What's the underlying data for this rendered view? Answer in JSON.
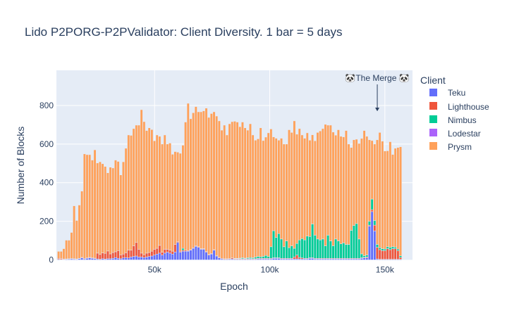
{
  "chart_data": {
    "type": "bar",
    "barmode": "stack",
    "title": "Lido P2PORG-P2PValidator: Client Diversity. 1 bar = 5 days",
    "xlabel": "Epoch",
    "ylabel": "Number of Blocks",
    "xlim": [
      7350,
      162000
    ],
    "ylim": [
      0,
      982
    ],
    "grid": true,
    "x_ticks": [
      {
        "value": 50000,
        "label": "50k"
      },
      {
        "value": 100000,
        "label": "100k"
      },
      {
        "value": 150000,
        "label": "150k"
      }
    ],
    "y_ticks": [
      {
        "value": 0,
        "label": "0"
      },
      {
        "value": 200,
        "label": "200"
      },
      {
        "value": 400,
        "label": "400"
      },
      {
        "value": 600,
        "label": "600"
      },
      {
        "value": 800,
        "label": "800"
      }
    ],
    "legend": {
      "title": "Client",
      "placement": "right"
    },
    "annotation": {
      "text": "🐼The Merge 🐼",
      "x": 146700,
      "y": 770
    },
    "colors": {
      "background": "#E5ECF6",
      "text": "#2a3f5f"
    },
    "x": [
      8300,
      9425,
      10550,
      11675,
      12800,
      13925,
      15050,
      16175,
      17300,
      18425,
      19550,
      20675,
      21800,
      22925,
      24050,
      25175,
      26300,
      27425,
      28550,
      29675,
      30800,
      31925,
      33050,
      34175,
      35300,
      36425,
      37550,
      38675,
      39800,
      40925,
      42050,
      43175,
      44300,
      45425,
      46550,
      47675,
      48800,
      49925,
      51050,
      52175,
      53300,
      54425,
      55550,
      56675,
      57800,
      58925,
      60050,
      61175,
      62300,
      63425,
      64550,
      65675,
      66800,
      67925,
      69050,
      70175,
      71300,
      72425,
      73550,
      74675,
      75800,
      76925,
      78050,
      79175,
      80300,
      81425,
      82550,
      83675,
      84800,
      85925,
      87050,
      88175,
      89300,
      90425,
      91550,
      92675,
      93800,
      94925,
      96050,
      97175,
      98300,
      99425,
      100550,
      101675,
      102800,
      103925,
      105050,
      106175,
      107300,
      108425,
      109550,
      110675,
      111800,
      112925,
      114050,
      115175,
      116300,
      117425,
      118550,
      119675,
      120800,
      121925,
      123050,
      124175,
      125300,
      126425,
      127550,
      128675,
      129800,
      130925,
      132050,
      133175,
      134300,
      135425,
      136550,
      137675,
      138800,
      139925,
      141050,
      142175,
      143300,
      144425,
      145550,
      146675,
      147800,
      148925,
      150050,
      151175,
      152300,
      153425,
      154550,
      155675,
      156800
    ],
    "series": [
      {
        "name": "Teku",
        "color": "#636efa",
        "values": [
          3,
          2,
          2,
          3,
          4,
          5,
          4,
          3,
          6,
          10,
          5,
          8,
          10,
          8,
          6,
          5,
          3,
          6,
          4,
          6,
          6,
          8,
          12,
          8,
          6,
          10,
          12,
          10,
          15,
          18,
          20,
          15,
          15,
          12,
          15,
          18,
          20,
          25,
          30,
          35,
          25,
          35,
          40,
          35,
          30,
          40,
          90,
          40,
          45,
          45,
          45,
          50,
          60,
          70,
          65,
          55,
          55,
          40,
          25,
          30,
          50,
          20,
          10,
          5,
          3,
          3,
          4,
          5,
          3,
          3,
          3,
          3,
          3,
          3,
          4,
          3,
          3,
          5,
          5,
          5,
          5,
          5,
          5,
          8,
          8,
          8,
          5,
          5,
          5,
          5,
          5,
          5,
          5,
          5,
          5,
          5,
          5,
          8,
          8,
          5,
          5,
          5,
          5,
          5,
          5,
          5,
          5,
          5,
          5,
          5,
          5,
          5,
          5,
          5,
          5,
          5,
          5,
          8,
          10,
          10,
          175,
          250,
          150,
          5,
          3,
          3,
          3,
          3,
          3,
          3,
          3,
          3,
          3
        ]
      },
      {
        "name": "Lighthouse",
        "color": "#EF553B",
        "values": [
          5,
          5,
          3,
          2,
          2,
          2,
          2,
          2,
          2,
          3,
          3,
          3,
          3,
          3,
          3,
          30,
          25,
          30,
          30,
          40,
          25,
          30,
          30,
          40,
          20,
          20,
          25,
          40,
          35,
          55,
          70,
          40,
          20,
          15,
          20,
          20,
          25,
          30,
          30,
          40,
          15,
          20,
          15,
          15,
          15,
          40,
          5,
          5,
          5,
          5,
          3,
          3,
          3,
          3,
          3,
          3,
          3,
          3,
          3,
          3,
          3,
          3,
          3,
          3,
          3,
          3,
          3,
          5,
          3,
          3,
          3,
          3,
          3,
          3,
          3,
          3,
          3,
          3,
          3,
          3,
          3,
          3,
          3,
          3,
          3,
          3,
          3,
          3,
          3,
          3,
          3,
          10,
          20,
          8,
          5,
          3,
          3,
          3,
          3,
          3,
          3,
          3,
          3,
          3,
          3,
          3,
          3,
          3,
          3,
          3,
          3,
          3,
          3,
          3,
          3,
          3,
          3,
          3,
          3,
          5,
          5,
          10,
          30,
          60,
          50,
          45,
          45,
          55,
          50,
          55,
          55,
          45,
          10
        ]
      },
      {
        "name": "Nimbus",
        "color": "#00cc96",
        "values": [
          0,
          0,
          0,
          0,
          0,
          0,
          0,
          0,
          0,
          0,
          0,
          0,
          0,
          0,
          0,
          0,
          0,
          0,
          0,
          0,
          0,
          0,
          0,
          0,
          0,
          0,
          0,
          0,
          0,
          0,
          0,
          0,
          0,
          0,
          0,
          0,
          0,
          0,
          0,
          0,
          0,
          0,
          0,
          0,
          0,
          0,
          0,
          0,
          10,
          0,
          0,
          0,
          0,
          0,
          0,
          0,
          0,
          0,
          0,
          0,
          0,
          0,
          0,
          0,
          0,
          0,
          0,
          0,
          2,
          2,
          3,
          5,
          3,
          5,
          5,
          5,
          8,
          10,
          8,
          10,
          15,
          10,
          60,
          140,
          105,
          125,
          100,
          60,
          90,
          55,
          65,
          45,
          60,
          90,
          100,
          95,
          115,
          110,
          175,
          120,
          100,
          95,
          100,
          65,
          120,
          90,
          65,
          100,
          90,
          75,
          80,
          72,
          72,
          145,
          170,
          180,
          100,
          20,
          8,
          10,
          20,
          55,
          24,
          15,
          10,
          10,
          8,
          10,
          12,
          10,
          8,
          8,
          8
        ]
      },
      {
        "name": "Lodestar",
        "color": "#ab63fa",
        "values": [
          0,
          0,
          0,
          0,
          0,
          0,
          0,
          0,
          0,
          0,
          0,
          0,
          0,
          0,
          0,
          0,
          0,
          0,
          0,
          0,
          0,
          0,
          0,
          0,
          0,
          0,
          0,
          0,
          0,
          0,
          0,
          0,
          0,
          0,
          0,
          0,
          0,
          0,
          0,
          0,
          0,
          0,
          0,
          0,
          0,
          0,
          0,
          0,
          0,
          0,
          0,
          0,
          0,
          0,
          0,
          0,
          0,
          0,
          0,
          0,
          0,
          0,
          0,
          0,
          0,
          0,
          0,
          0,
          0,
          0,
          0,
          0,
          0,
          0,
          0,
          0,
          0,
          0,
          0,
          0,
          0,
          0,
          0,
          0,
          0,
          0,
          0,
          0,
          0,
          0,
          0,
          0,
          0,
          0,
          0,
          0,
          0,
          0,
          0,
          0,
          0,
          0,
          0,
          0,
          0,
          0,
          0,
          0,
          0,
          0,
          0,
          0,
          0,
          0,
          0,
          0,
          0,
          0,
          0,
          0,
          0,
          0,
          0,
          0,
          0,
          0,
          0,
          0,
          0,
          0,
          0,
          0,
          0
        ]
      },
      {
        "name": "Prysm",
        "color": "#FFA15A",
        "values": [
          36,
          37,
          53,
          97,
          96,
          135,
          274,
          199,
          276,
          343,
          541,
          534,
          532,
          506,
          561,
          467,
          480,
          462,
          450,
          405,
          449,
          438,
          475,
          462,
          414,
          478,
          541,
          597,
          595,
          607,
          608,
          643,
          743,
          689,
          635,
          646,
          630,
          562,
          587,
          565,
          560,
          592,
          545,
          555,
          502,
          481,
          463,
          507,
          534,
          664,
          763,
          678,
          699,
          721,
          699,
          709,
          714,
          743,
          710,
          725,
          714,
          722,
          707,
          664,
          692,
          641,
          698,
          706,
          710,
          706,
          681,
          703,
          675,
          661,
          693,
          636,
          606,
          609,
          668,
          600,
          613,
          640,
          610,
          486,
          514,
          484,
          522,
          532,
          502,
          611,
          587,
          660,
          566,
          577,
          537,
          527,
          535,
          499,
          462,
          489,
          552,
          565,
          572,
          629,
          570,
          600,
          589,
          538,
          576,
          557,
          549,
          590,
          520,
          429,
          444,
          437,
          495,
          598,
          649,
          615,
          422,
          303,
          396,
          542,
          597,
          557,
          508,
          497,
          547,
          478,
          512,
          526,
          565
        ]
      }
    ]
  }
}
